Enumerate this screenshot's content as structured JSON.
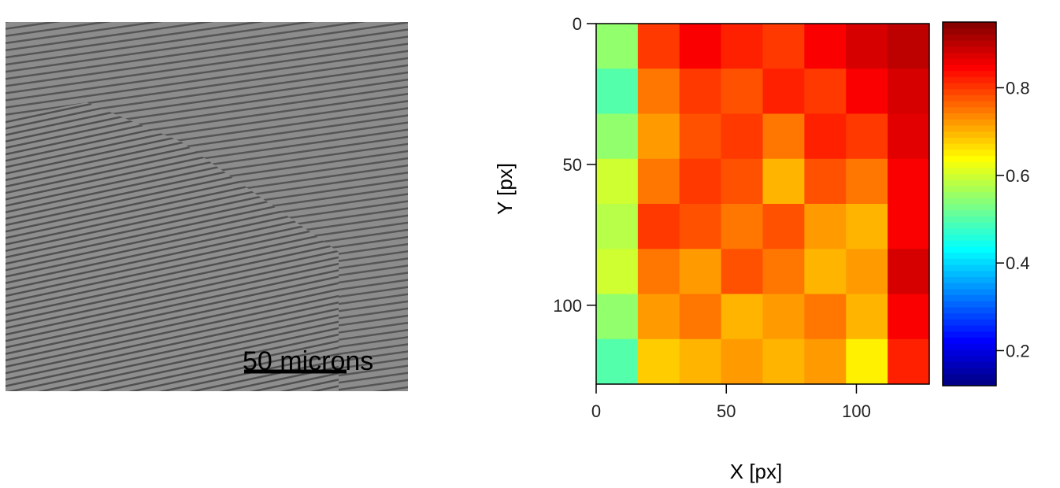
{
  "image": {
    "scale_bar_label": "50 microns"
  },
  "chart_data": {
    "type": "heatmap",
    "x_label": "X [px]",
    "y_label": "Y [px]",
    "xlim": [
      0,
      128
    ],
    "ylim": [
      128,
      0
    ],
    "xticks": [
      0,
      50,
      100
    ],
    "yticks": [
      0,
      50,
      100
    ],
    "colormap": "jet",
    "clim": [
      0.12,
      0.95
    ],
    "cticks": [
      0.2,
      0.4,
      0.6,
      0.8
    ],
    "z": [
      [
        0.55,
        0.8,
        0.85,
        0.82,
        0.8,
        0.85,
        0.88,
        0.9
      ],
      [
        0.5,
        0.75,
        0.8,
        0.78,
        0.82,
        0.8,
        0.85,
        0.88
      ],
      [
        0.55,
        0.72,
        0.78,
        0.8,
        0.75,
        0.82,
        0.8,
        0.87
      ],
      [
        0.6,
        0.75,
        0.8,
        0.78,
        0.7,
        0.78,
        0.75,
        0.85
      ],
      [
        0.58,
        0.8,
        0.78,
        0.75,
        0.78,
        0.72,
        0.7,
        0.85
      ],
      [
        0.6,
        0.75,
        0.72,
        0.78,
        0.75,
        0.7,
        0.72,
        0.88
      ],
      [
        0.55,
        0.72,
        0.75,
        0.7,
        0.72,
        0.75,
        0.7,
        0.85
      ],
      [
        0.5,
        0.68,
        0.7,
        0.72,
        0.7,
        0.72,
        0.65,
        0.82
      ]
    ]
  }
}
